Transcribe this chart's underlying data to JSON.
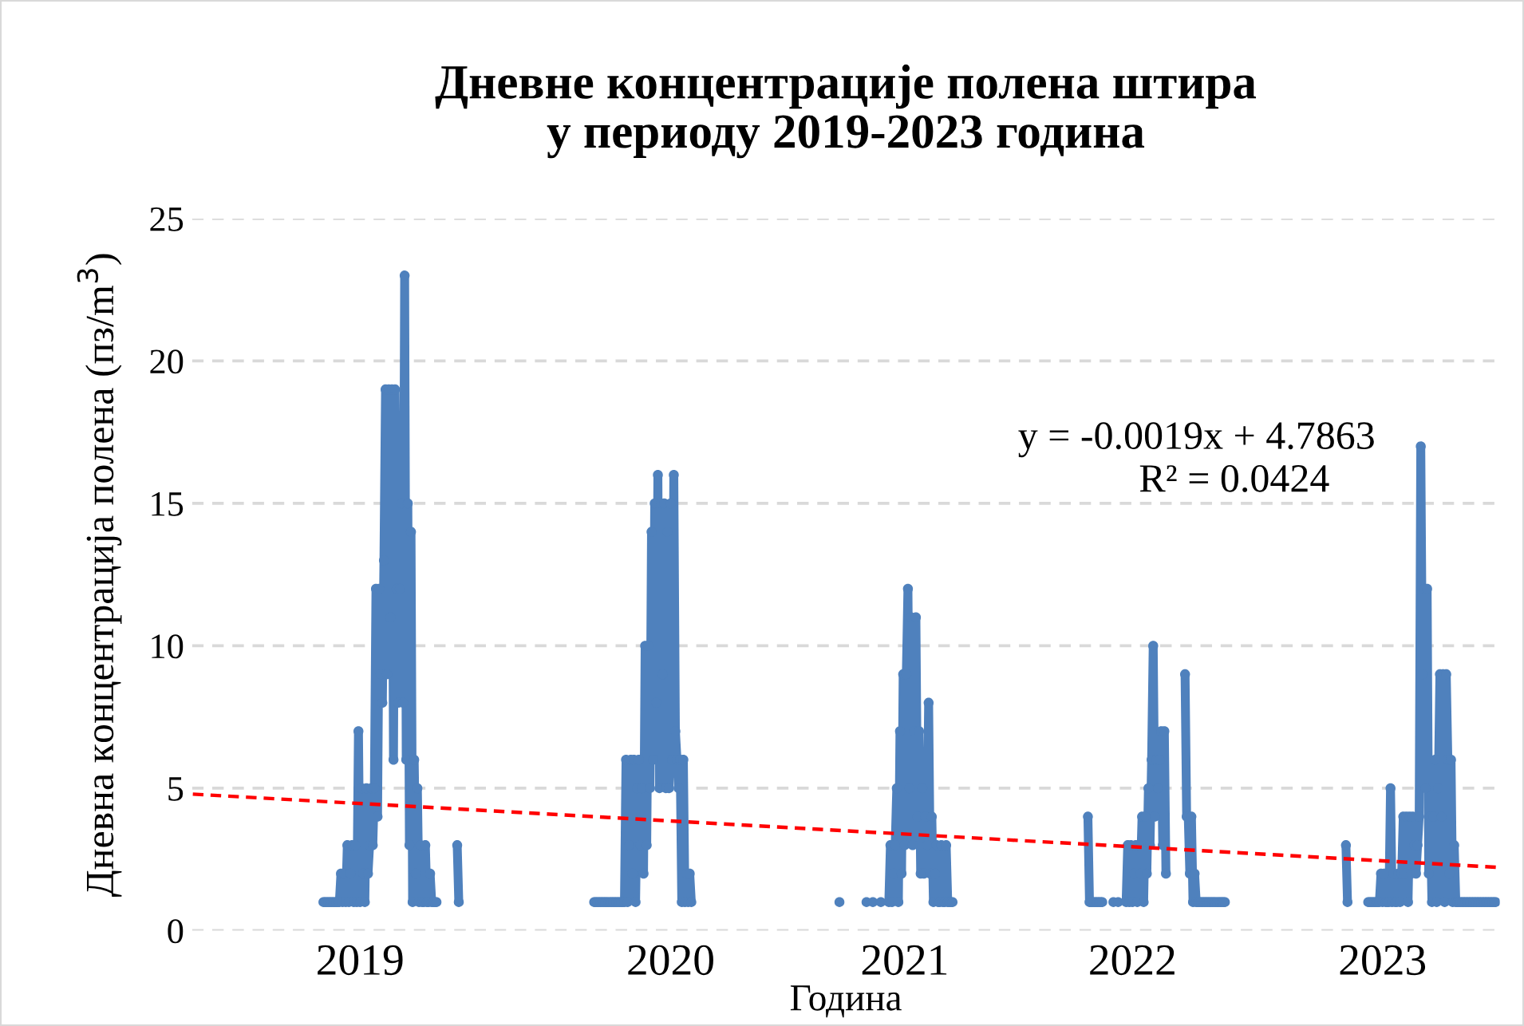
{
  "chart_data": {
    "type": "line",
    "title": "Дневне концентрације полена штира\nу периоду 2019-2023 година",
    "xlabel": "Година",
    "ylabel": "Дневна концентрација полена (пз/m$^{3}$)",
    "categories": [
      null,
      null,
      null,
      null,
      null,
      null,
      null,
      null,
      null,
      null,
      null,
      null,
      null,
      null,
      null,
      null,
      null,
      null,
      null,
      null,
      null,
      null,
      null,
      null,
      null,
      null,
      null,
      null,
      null,
      null,
      null,
      null,
      null,
      null,
      null,
      null,
      null,
      null,
      null,
      null,
      null,
      null,
      null,
      null,
      null,
      null,
      null,
      null,
      null,
      null,
      null,
      null,
      null,
      null,
      null,
      null,
      null,
      null,
      null,
      null,
      null,
      null,
      null,
      null,
      null,
      null,
      null,
      null,
      null,
      null,
      null,
      null,
      null,
      null,
      null,
      null,
      null,
      null,
      null,
      null,
      null,
      null,
      null,
      null,
      null,
      null,
      null,
      null,
      null,
      null,
      null,
      null,
      null,
      null,
      null,
      null,
      null,
      null,
      null,
      null,
      null,
      null,
      null,
      null,
      null,
      "2019",
      null,
      null,
      null,
      null,
      null,
      null,
      null,
      null,
      null,
      null,
      null,
      null,
      null,
      null,
      null,
      null,
      null,
      null,
      null,
      null,
      null,
      null,
      null,
      null,
      null,
      null,
      null,
      null,
      null,
      null,
      null,
      null,
      null,
      null,
      null,
      null,
      null,
      null,
      null,
      null,
      null,
      null,
      null,
      null,
      null,
      null,
      null,
      null,
      null,
      null,
      null,
      null,
      null,
      null,
      null,
      null,
      null,
      null,
      null,
      null,
      null,
      null,
      null,
      null,
      null,
      null,
      null,
      null,
      null,
      null,
      null,
      null,
      null,
      null,
      null,
      null,
      null,
      null,
      null,
      null,
      null,
      null,
      null,
      null,
      null,
      null,
      null,
      null,
      null,
      null,
      null,
      null,
      null,
      null,
      null,
      null,
      null,
      null,
      null,
      null,
      null,
      null,
      null,
      null,
      null,
      null,
      null,
      null,
      null,
      null,
      null,
      null,
      null,
      null,
      null,
      null,
      null,
      null,
      null,
      null,
      null,
      null,
      null,
      null,
      null,
      null,
      null,
      null,
      null,
      null,
      null,
      null,
      null,
      null,
      null,
      null,
      null,
      null,
      null,
      null,
      null,
      null,
      null,
      null,
      null,
      null,
      null,
      null,
      null,
      null,
      null,
      null,
      null,
      null,
      null,
      null,
      null,
      null,
      null,
      null,
      null,
      null,
      null,
      null,
      null,
      null,
      null,
      null,
      null,
      null,
      null,
      null,
      null,
      null,
      null,
      null,
      null,
      null,
      null,
      null,
      null,
      null,
      null,
      null,
      null,
      null,
      null,
      null,
      null,
      null,
      null,
      null,
      null,
      null,
      "2020",
      null,
      null,
      null,
      null,
      null,
      null,
      null,
      null,
      null,
      null,
      null,
      null,
      null,
      null,
      null,
      null,
      null,
      null,
      null,
      null,
      null,
      null,
      null,
      null,
      null,
      null,
      null,
      null,
      null,
      null,
      null,
      null,
      null,
      null,
      null,
      null,
      null,
      null,
      null,
      null,
      null,
      null,
      null,
      null,
      null,
      null,
      null,
      null,
      null,
      null,
      null,
      null,
      null,
      null,
      null,
      null,
      null,
      null,
      null,
      null,
      null,
      null,
      null,
      null,
      null,
      null,
      null,
      null,
      null,
      null,
      null,
      null,
      null,
      null,
      null,
      null,
      null,
      null,
      null,
      null,
      null,
      null,
      null,
      null,
      null,
      null,
      null,
      null,
      null,
      null,
      null,
      null,
      null,
      null,
      null,
      null,
      null,
      null,
      null,
      null,
      null,
      null,
      null,
      null,
      null,
      null,
      null,
      null,
      null,
      null,
      null,
      null,
      null,
      null,
      null,
      null,
      null,
      null,
      null,
      null,
      null,
      null,
      null,
      null,
      null,
      null,
      null,
      null,
      null,
      null,
      null,
      null,
      null,
      null,
      null,
      null,
      null,
      null,
      null,
      null,
      null,
      null,
      null,
      null,
      null,
      null,
      "2021",
      null,
      null,
      null,
      null,
      null,
      null,
      null,
      null,
      null,
      null,
      null,
      null,
      null,
      null,
      null,
      null,
      null,
      null,
      null,
      null,
      null,
      null,
      null,
      null,
      null,
      null,
      null,
      null,
      null,
      null,
      null,
      null,
      null,
      null,
      null,
      null,
      null,
      null,
      null,
      null,
      null,
      null,
      null,
      null,
      null,
      null,
      null,
      null,
      null,
      null,
      null,
      null,
      null,
      null,
      null,
      null,
      null,
      null,
      null,
      null,
      null,
      null,
      null,
      null,
      null,
      null,
      null,
      null,
      null,
      null,
      null,
      null,
      null,
      null,
      null,
      null,
      null,
      null,
      null,
      null,
      null,
      null,
      null,
      null,
      null,
      null,
      null,
      null,
      null,
      null,
      null,
      null,
      null,
      null,
      null,
      null,
      null,
      null,
      null,
      null,
      null,
      null,
      null,
      null,
      null,
      null,
      null,
      null,
      null,
      null,
      null,
      null,
      null,
      null,
      null,
      null,
      null,
      null,
      null,
      null,
      null,
      null,
      null,
      null,
      null,
      null,
      null,
      null,
      null,
      null,
      null,
      null,
      null,
      null,
      null,
      null,
      null,
      null,
      null,
      null,
      null,
      null,
      "2022",
      null,
      null,
      null,
      null,
      null,
      null,
      null,
      null,
      null,
      null,
      null,
      null,
      null,
      null,
      null,
      null,
      null,
      null,
      null,
      null,
      null,
      null,
      null,
      null,
      null,
      null,
      null,
      null,
      null,
      null,
      null,
      null,
      null,
      null,
      null,
      null,
      null,
      null,
      null,
      null,
      null,
      null,
      null,
      null,
      null,
      null,
      null,
      null,
      null,
      null,
      null,
      null,
      null,
      null,
      null,
      null,
      null,
      null,
      null,
      null,
      null,
      null,
      null,
      null,
      null,
      null,
      null,
      null,
      null,
      null,
      null,
      null,
      null,
      null,
      null,
      null,
      null,
      null,
      null,
      null,
      null,
      null,
      null,
      null,
      null,
      null,
      null,
      null,
      null,
      null,
      null,
      null,
      null,
      null,
      null,
      null,
      null,
      null,
      null,
      null,
      null,
      null,
      null,
      null,
      null,
      null,
      null,
      null,
      null,
      null,
      null,
      null,
      null,
      null,
      null,
      null,
      null,
      null,
      null,
      null,
      null,
      null,
      null,
      null,
      null,
      null,
      null,
      null,
      null,
      null,
      null,
      null,
      null,
      null,
      null,
      null,
      null,
      null,
      null,
      null,
      null,
      null,
      null,
      null,
      null,
      null,
      null,
      null,
      null,
      null,
      null,
      null,
      null,
      null,
      null,
      null,
      "2023",
      null,
      null,
      null,
      null,
      null,
      null,
      null,
      null,
      null,
      null,
      null,
      null,
      null,
      null,
      null,
      null,
      null,
      null,
      null,
      null,
      null,
      null,
      null,
      null,
      null,
      null,
      null,
      null,
      null,
      null,
      null,
      null,
      null,
      null,
      null,
      null,
      null,
      null,
      null,
      null,
      null,
      null,
      null,
      null,
      null,
      null,
      null,
      null,
      null,
      null,
      null,
      null,
      null,
      null,
      null,
      null,
      null,
      null,
      null,
      null,
      null,
      null,
      null,
      null,
      null,
      null,
      null,
      null,
      null,
      null,
      null,
      null,
      null
    ],
    "ylim": [
      0,
      25
    ],
    "yticks": [
      0,
      5,
      10,
      15,
      20,
      25
    ],
    "grid": "y",
    "marker": "circle",
    "annotations": [
      "y = -0.0019x + 4.7863",
      "R² = 0.0424"
    ],
    "series": [
      {
        "color": "#4f81bd",
        "line_style": "solid",
        "values": [
          null,
          null,
          null,
          null,
          null,
          null,
          null,
          null,
          null,
          null,
          null,
          null,
          null,
          null,
          null,
          null,
          null,
          null,
          null,
          null,
          null,
          null,
          null,
          null,
          null,
          null,
          null,
          null,
          null,
          null,
          null,
          null,
          null,
          null,
          null,
          null,
          null,
          null,
          null,
          null,
          null,
          null,
          null,
          null,
          null,
          null,
          null,
          null,
          null,
          null,
          null,
          null,
          null,
          null,
          null,
          null,
          null,
          null,
          null,
          null,
          null,
          null,
          null,
          null,
          null,
          null,
          null,
          null,
          null,
          null,
          null,
          null,
          null,
          null,
          null,
          null,
          null,
          null,
          null,
          null,
          null,
          null,
          1,
          1,
          1,
          1,
          1,
          1,
          1,
          1,
          1,
          1,
          1,
          2,
          1,
          2,
          1,
          3,
          1,
          2,
          3,
          1,
          3,
          1,
          7,
          1,
          5,
          2,
          1,
          5,
          2,
          3,
          5,
          3,
          5,
          12,
          4,
          12,
          9,
          8,
          13,
          19,
          9,
          19,
          11,
          19,
          6,
          19,
          12,
          8,
          12,
          15,
          8,
          23,
          6,
          15,
          3,
          14,
          1,
          6,
          2,
          5,
          1,
          3,
          1,
          1,
          3,
          1,
          1,
          2,
          1,
          1,
          1,
          1,
          null,
          null,
          null,
          null,
          null,
          null,
          null,
          null,
          null,
          null,
          null,
          null,
          3,
          1,
          null,
          null,
          null,
          null,
          null,
          null,
          null,
          null,
          null,
          null,
          null,
          null,
          null,
          null,
          null,
          null,
          null,
          null,
          null,
          null,
          null,
          null,
          null,
          null,
          null,
          null,
          null,
          null,
          null,
          null,
          null,
          null,
          null,
          null,
          null,
          null,
          null,
          null,
          null,
          null,
          null,
          null,
          null,
          null,
          null,
          null,
          null,
          null,
          null,
          null,
          null,
          null,
          null,
          null,
          null,
          null,
          null,
          null,
          null,
          null,
          null,
          null,
          null,
          null,
          null,
          null,
          null,
          null,
          null,
          null,
          null,
          null,
          null,
          null,
          null,
          null,
          null,
          null,
          null,
          null,
          null,
          null,
          null,
          null,
          1,
          1,
          1,
          1,
          1,
          1,
          1,
          1,
          1,
          1,
          1,
          1,
          1,
          1,
          1,
          1,
          1,
          1,
          1,
          1,
          6,
          1,
          3,
          6,
          2,
          6,
          1,
          5,
          6,
          3,
          5,
          2,
          10,
          3,
          10,
          5,
          14,
          6,
          15,
          8,
          16,
          5,
          15,
          9,
          15,
          5,
          14,
          5,
          15,
          6,
          16,
          7,
          6,
          5,
          6,
          1,
          6,
          1,
          2,
          1,
          2,
          1,
          null,
          null,
          null,
          null,
          null,
          null,
          null,
          null,
          null,
          null,
          null,
          null,
          null,
          null,
          null,
          null,
          null,
          null,
          null,
          null,
          null,
          null,
          null,
          null,
          null,
          null,
          null,
          null,
          null,
          null,
          null,
          null,
          null,
          null,
          null,
          null,
          null,
          null,
          null,
          null,
          null,
          null,
          null,
          null,
          null,
          null,
          null,
          null,
          null,
          null,
          null,
          null,
          null,
          null,
          null,
          null,
          null,
          null,
          null,
          null,
          null,
          null,
          null,
          null,
          null,
          null,
          null,
          null,
          null,
          null,
          null,
          null,
          null,
          null,
          null,
          null,
          null,
          null,
          null,
          null,
          null,
          null,
          null,
          null,
          null,
          null,
          null,
          null,
          null,
          null,
          null,
          null,
          1,
          null,
          null,
          null,
          null,
          null,
          null,
          null,
          null,
          null,
          null,
          null,
          null,
          null,
          null,
          null,
          null,
          1,
          null,
          null,
          null,
          1,
          null,
          null,
          null,
          null,
          1,
          null,
          null,
          null,
          null,
          1,
          3,
          1,
          2,
          3,
          5,
          1,
          7,
          2,
          9,
          3,
          9,
          12,
          5,
          11,
          3,
          7,
          11,
          4,
          7,
          2,
          5,
          2,
          4,
          3,
          8,
          2,
          4,
          1,
          2,
          3,
          1,
          1,
          3,
          1,
          1,
          3,
          1,
          1,
          1,
          1,
          null,
          null,
          null,
          null,
          null,
          null,
          null,
          null,
          null,
          null,
          null,
          null,
          null,
          null,
          null,
          null,
          null,
          null,
          null,
          null,
          null,
          null,
          null,
          null,
          null,
          null,
          null,
          null,
          null,
          null,
          null,
          null,
          null,
          null,
          null,
          null,
          null,
          null,
          null,
          null,
          null,
          null,
          null,
          null,
          null,
          null,
          null,
          null,
          null,
          null,
          null,
          null,
          null,
          null,
          null,
          null,
          null,
          null,
          null,
          null,
          null,
          null,
          null,
          null,
          null,
          null,
          null,
          null,
          null,
          null,
          null,
          null,
          null,
          null,
          null,
          null,
          null,
          null,
          null,
          null,
          null,
          null,
          null,
          null,
          4,
          1,
          1,
          1,
          1,
          1,
          1,
          1,
          1,
          1,
          null,
          null,
          null,
          null,
          null,
          null,
          1,
          null,
          null,
          1,
          null,
          null,
          null,
          null,
          1,
          3,
          1,
          3,
          1,
          2,
          3,
          1,
          3,
          2,
          4,
          1,
          4,
          2,
          5,
          3,
          6,
          10,
          4,
          6,
          5,
          6,
          7,
          3,
          7,
          2,
          null,
          null,
          null,
          null,
          null,
          null,
          null,
          null,
          null,
          null,
          null,
          9,
          4,
          4,
          2,
          4,
          1,
          2,
          1,
          1,
          1,
          1,
          1,
          1,
          1,
          1,
          1,
          1,
          1,
          1,
          1,
          1,
          1,
          1,
          1,
          1,
          1,
          null,
          null,
          null,
          null,
          null,
          null,
          null,
          null,
          null,
          null,
          null,
          null,
          null,
          null,
          null,
          null,
          null,
          null,
          null,
          null,
          null,
          null,
          null,
          null,
          null,
          null,
          null,
          null,
          null,
          null,
          null,
          null,
          null,
          null,
          null,
          null,
          null,
          null,
          null,
          null,
          null,
          null,
          null,
          null,
          null,
          null,
          null,
          null,
          null,
          null,
          null,
          null,
          null,
          null,
          null,
          null,
          null,
          null,
          null,
          null,
          null,
          null,
          null,
          null,
          null,
          null,
          null,
          null,
          null,
          null,
          null,
          null,
          null,
          null,
          null,
          3,
          1,
          null,
          null,
          null,
          null,
          null,
          null,
          null,
          null,
          null,
          null,
          null,
          null,
          1,
          1,
          1,
          1,
          1,
          1,
          1,
          1,
          2,
          1,
          2,
          1,
          1,
          1,
          5,
          1,
          2,
          1,
          1,
          2,
          1,
          2,
          4,
          2,
          4,
          1,
          4,
          2,
          4,
          3,
          2,
          3,
          4,
          17,
          9,
          12,
          5,
          12,
          2,
          4,
          1,
          4,
          6,
          1,
          5,
          9,
          4,
          9,
          1,
          9,
          6,
          2,
          6,
          1,
          3,
          1,
          1,
          1,
          1,
          1,
          1,
          1,
          1,
          1,
          1,
          1,
          1,
          1,
          1,
          1,
          1,
          1,
          1,
          1,
          1,
          1,
          1,
          1,
          1,
          1,
          1,
          null,
          null
        ]
      },
      {
        "type": "line",
        "color": "#ff0000",
        "line_style": "dashed",
        "marker": "none",
        "values": [
          4.79,
          null,
          null,
          null,
          null,
          null,
          null,
          null,
          null,
          null,
          null,
          null,
          null,
          null,
          null,
          null,
          null,
          null,
          null,
          null,
          null,
          null,
          null,
          null,
          null,
          null,
          null,
          null,
          null,
          null,
          null,
          null,
          null,
          null,
          null,
          null,
          null,
          null,
          null,
          null,
          null,
          null,
          null,
          null,
          null,
          null,
          null,
          null,
          null,
          null,
          null,
          null,
          null,
          null,
          null,
          null,
          null,
          null,
          null,
          null,
          null,
          null,
          null,
          null,
          null,
          null,
          null,
          null,
          null,
          null,
          null,
          null,
          null,
          null,
          null,
          null,
          null,
          null,
          null,
          null,
          null,
          null,
          null,
          null,
          null,
          null,
          null,
          null,
          null,
          null,
          null,
          null,
          null,
          null,
          null,
          null,
          null,
          null,
          null,
          null,
          null,
          null,
          null,
          null,
          null,
          null,
          null,
          null,
          null,
          null,
          null,
          null,
          null,
          null,
          null,
          null,
          null,
          null,
          null,
          null,
          null,
          null,
          null,
          null,
          null,
          null,
          null,
          null,
          null,
          null,
          null,
          null,
          null,
          null,
          null,
          null,
          null,
          null,
          null,
          null,
          null,
          null,
          null,
          null,
          null,
          null,
          null,
          null,
          null,
          null,
          null,
          null,
          null,
          null,
          null,
          null,
          null,
          null,
          null,
          null,
          null,
          null,
          null,
          null,
          null,
          null,
          null,
          null,
          null,
          null,
          null,
          null,
          null,
          null,
          null,
          null,
          null,
          null,
          null,
          null,
          null,
          null,
          null,
          null,
          null,
          null,
          null,
          null,
          null,
          null,
          null,
          null,
          null,
          null,
          null,
          null,
          null,
          null,
          null,
          null,
          null,
          null,
          null,
          null,
          null,
          null,
          null,
          null,
          null,
          null,
          null,
          null,
          null,
          null,
          null,
          null,
          null,
          null,
          null,
          null,
          null,
          null,
          null,
          null,
          null,
          null,
          null,
          null,
          null,
          null,
          null,
          null,
          null,
          null,
          null,
          null,
          null,
          null,
          null,
          null,
          null,
          null,
          null,
          null,
          null,
          null,
          null,
          null,
          null,
          null,
          null,
          null,
          null,
          null,
          null,
          null,
          null,
          null,
          null,
          null,
          null,
          null,
          null,
          null,
          null,
          null,
          null,
          null,
          null,
          null,
          null,
          null,
          null,
          null,
          null,
          null,
          null,
          null,
          null,
          null,
          null,
          null,
          null,
          null,
          null,
          null,
          null,
          null,
          null,
          null,
          null,
          null,
          null,
          null,
          null,
          null,
          null,
          null,
          null,
          null,
          null,
          null,
          null,
          null,
          null,
          null,
          null,
          null,
          null,
          null,
          null,
          null,
          null,
          null,
          null,
          null,
          null,
          null,
          null,
          null,
          null,
          null,
          null,
          null,
          null,
          null,
          null,
          null,
          null,
          null,
          null,
          null,
          null,
          null,
          null,
          null,
          null,
          null,
          null,
          null,
          null,
          null,
          null,
          null,
          null,
          null,
          null,
          null,
          null,
          null,
          null,
          null,
          null,
          null,
          null,
          null,
          null,
          null,
          null,
          null,
          null,
          null,
          null,
          null,
          null,
          null,
          null,
          null,
          null,
          null,
          null,
          null,
          null,
          null,
          null,
          null,
          null,
          null,
          null,
          null,
          null,
          null,
          null,
          null,
          null,
          null,
          null,
          null,
          null,
          null,
          null,
          null,
          null,
          null,
          null,
          null,
          null,
          null,
          null,
          null,
          null,
          null,
          null,
          null,
          null,
          null,
          null,
          null,
          null,
          null,
          null,
          null,
          null,
          null,
          null,
          null,
          null,
          null,
          null,
          null,
          null,
          null,
          null,
          null,
          null,
          null,
          null,
          null,
          null,
          null,
          null,
          null,
          null,
          null,
          null,
          null,
          null,
          null,
          null,
          null,
          null,
          null,
          null,
          null,
          null,
          null,
          null,
          null,
          null,
          null,
          null,
          null,
          null,
          null,
          null,
          null,
          null,
          null,
          null,
          null,
          null,
          null,
          null,
          null,
          null,
          null,
          null,
          null,
          null,
          null,
          null,
          null,
          null,
          null,
          null,
          null,
          null,
          null,
          null,
          null,
          null,
          null,
          null,
          null,
          null,
          null,
          null,
          null,
          null,
          null,
          null,
          null,
          null,
          null,
          null,
          null,
          null,
          null,
          null,
          null,
          null,
          null,
          null,
          null,
          null,
          null,
          null,
          null,
          null,
          null,
          null,
          null,
          null,
          null,
          null,
          null,
          null,
          null,
          null,
          null,
          null,
          null,
          null,
          null,
          null,
          null,
          null,
          null,
          null,
          null,
          null,
          null,
          null,
          null,
          null,
          null,
          null,
          null,
          null,
          null,
          null,
          null,
          null,
          null,
          null,
          null,
          null,
          null,
          null,
          null,
          null,
          null,
          null,
          null,
          null,
          null,
          null,
          null,
          null,
          null,
          null,
          null,
          null,
          null,
          null,
          null,
          null,
          null,
          null,
          null,
          null,
          null,
          null,
          null,
          null,
          null,
          null,
          null,
          null,
          null,
          null,
          null,
          null,
          null,
          null,
          null,
          null,
          null,
          null,
          null,
          null,
          null,
          null,
          null,
          null,
          null,
          null,
          null,
          null,
          null,
          null,
          null,
          null,
          null,
          null,
          null,
          null,
          null,
          null,
          null,
          null,
          null,
          null,
          null,
          null,
          null,
          null,
          null,
          null,
          null,
          null,
          null,
          null,
          null,
          null,
          null,
          null,
          null,
          null,
          null,
          null,
          null,
          null,
          null,
          null,
          null,
          null,
          null,
          null,
          null,
          null,
          null,
          null,
          null,
          null,
          null,
          null,
          null,
          null,
          null,
          null,
          null,
          null,
          null,
          null,
          null,
          null,
          null,
          null,
          null,
          null,
          null,
          null,
          null,
          null,
          null,
          null,
          null,
          null,
          null,
          null,
          null,
          null,
          null,
          null,
          null,
          null,
          null,
          null,
          null,
          null,
          null,
          null,
          null,
          null,
          null,
          null,
          null,
          null,
          null,
          null,
          null,
          null,
          null,
          null,
          null,
          null,
          null,
          null,
          null,
          null,
          null,
          null,
          null,
          null,
          null,
          null,
          null,
          null,
          null,
          null,
          null,
          null,
          null,
          null,
          null,
          null,
          null,
          null,
          null,
          null,
          null,
          null,
          null,
          null,
          null,
          null,
          null,
          null,
          null,
          null,
          null,
          null,
          null,
          null,
          null,
          null,
          null,
          null,
          null,
          null,
          null,
          null,
          null,
          null,
          null,
          null,
          null,
          null,
          null,
          null,
          null,
          null,
          null,
          null,
          null,
          null,
          null,
          null,
          null,
          null,
          null,
          null,
          null,
          null,
          null,
          null,
          null,
          null,
          null,
          null,
          null,
          null,
          null,
          null,
          null,
          null,
          null,
          null,
          null,
          null,
          null,
          null,
          null,
          null,
          null,
          null,
          null,
          null,
          null,
          null,
          null,
          null,
          null,
          null,
          null,
          null,
          null,
          null,
          null,
          null,
          null,
          null,
          null,
          null,
          null,
          null,
          null,
          null,
          null,
          null,
          null,
          null,
          null,
          null,
          null,
          null,
          null,
          null,
          null,
          2.22
        ]
      }
    ]
  }
}
